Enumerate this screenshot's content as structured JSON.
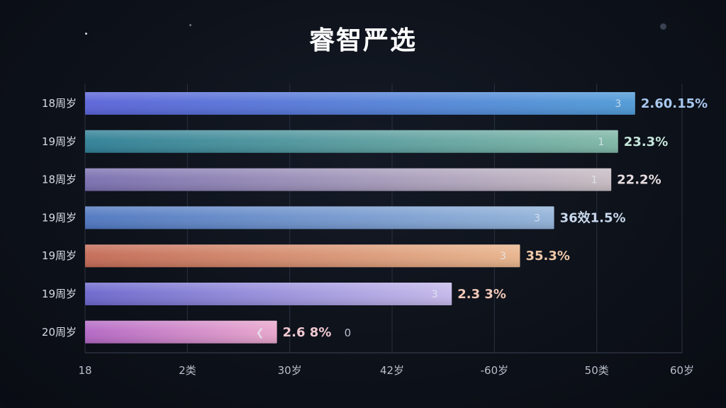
{
  "chart_data": {
    "type": "bar",
    "orientation": "horizontal",
    "title": "睿智严选",
    "categories": [
      "18周岁",
      "19周岁",
      "18周岁",
      "19周岁",
      "19周岁",
      "19周岁",
      "20周岁"
    ],
    "values": [
      64.5,
      62.5,
      61.7,
      55.0,
      51.0,
      43.0,
      22.5
    ],
    "value_labels": [
      "2.60.15%",
      "23.3%",
      "22.2%",
      "36效1.5%",
      "35.3%",
      "2.3 3%",
      "2.6 8%"
    ],
    "inbar_labels": [
      "3",
      "1",
      "1",
      "3",
      "3",
      "3",
      "❮"
    ],
    "trailing_labels": [
      "",
      "",
      "",
      "",
      "",
      "",
      "0"
    ],
    "ticks": [
      "18",
      "2类",
      "30岁",
      "42岁",
      "-60岁",
      "50类",
      "60岁"
    ],
    "tick_values": [
      0,
      12,
      24,
      36,
      48,
      60,
      70
    ],
    "xlim": [
      0,
      70
    ],
    "grid": true,
    "colors": [
      [
        "#5a63d8",
        "#4f9ad6"
      ],
      [
        "#2f7f96",
        "#7fb7a6"
      ],
      [
        "#7a6fb0",
        "#c7bcc2"
      ],
      [
        "#4f77c0",
        "#93b3d9"
      ],
      [
        "#c36a55",
        "#e8b48c"
      ],
      [
        "#6b66cc",
        "#c4b8ea"
      ],
      [
        "#b266c4",
        "#e8a6cc"
      ]
    ],
    "value_colors": [
      "#a8c8f0",
      "#c6e6dc",
      "#e6dce0",
      "#c8d8ec",
      "#f0c8a8",
      "#f0c8b8",
      "#f0c8d0"
    ]
  }
}
